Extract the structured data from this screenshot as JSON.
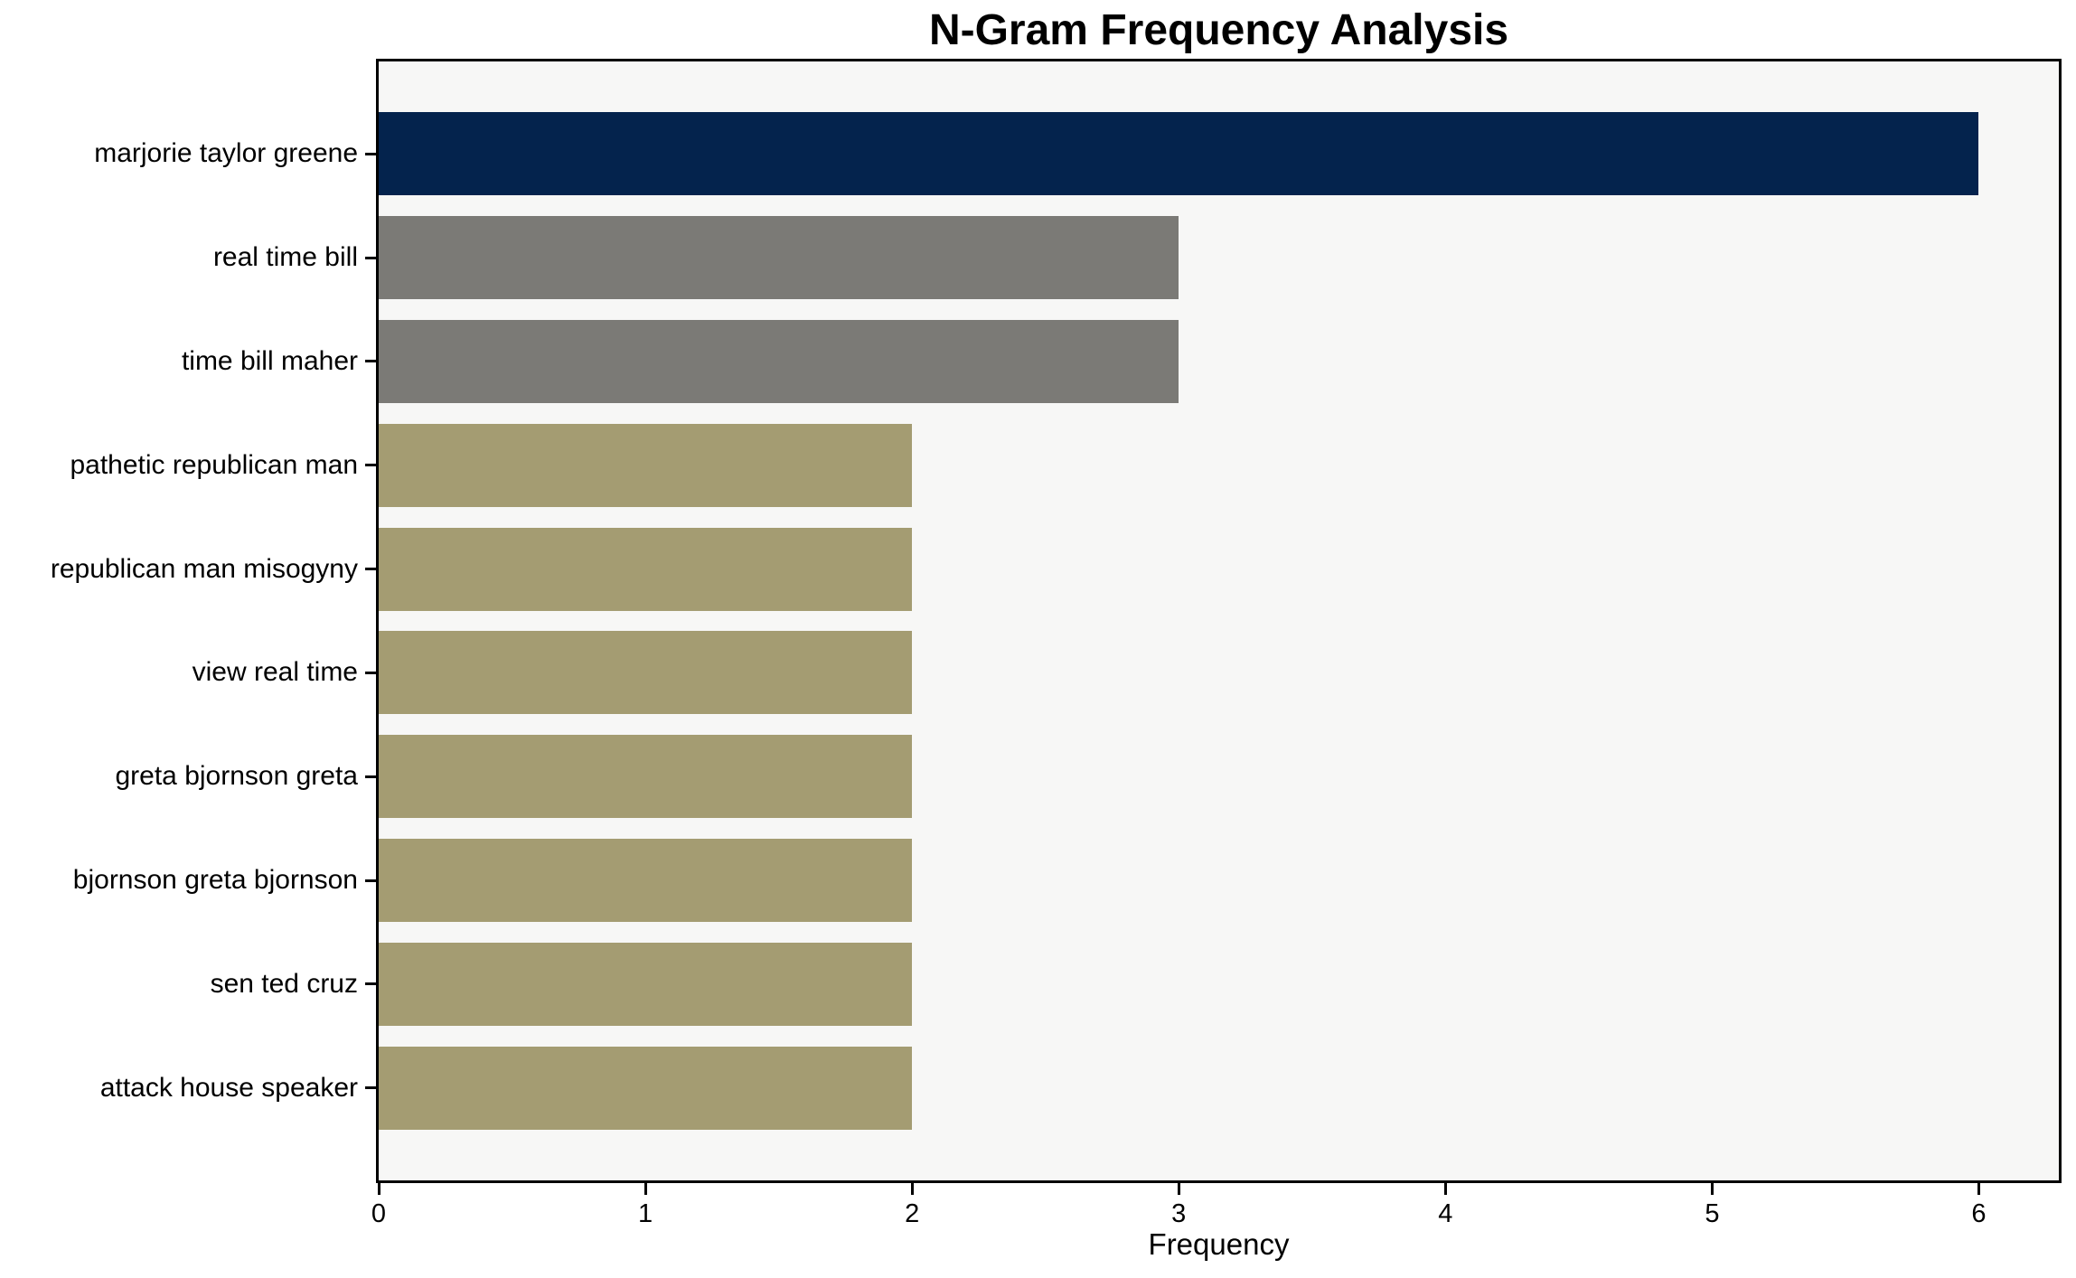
{
  "chart_data": {
    "type": "bar",
    "orientation": "horizontal",
    "title": "N-Gram Frequency Analysis",
    "xlabel": "Frequency",
    "ylabel": "",
    "categories": [
      "marjorie taylor greene",
      "real time bill",
      "time bill maher",
      "pathetic republican man",
      "republican man misogyny",
      "view real time",
      "greta bjornson greta",
      "bjornson greta bjornson",
      "sen ted cruz",
      "attack house speaker"
    ],
    "values": [
      6,
      3,
      3,
      2,
      2,
      2,
      2,
      2,
      2,
      2
    ],
    "bar_colors": [
      "#04234d",
      "#7b7a76",
      "#7b7a76",
      "#a49c72",
      "#a49c72",
      "#a49c72",
      "#a49c72",
      "#a49c72",
      "#a49c72",
      "#a49c72"
    ],
    "x_ticks": [
      0,
      1,
      2,
      3,
      4,
      5,
      6
    ],
    "xlim": [
      0,
      6.3
    ],
    "bar_height_frac": 0.8,
    "grid": false,
    "legend": false,
    "colors": {
      "figure_background": "#ffffff",
      "plot_background": "#f7f7f6",
      "spine": "#000000",
      "text": "#000000"
    }
  }
}
